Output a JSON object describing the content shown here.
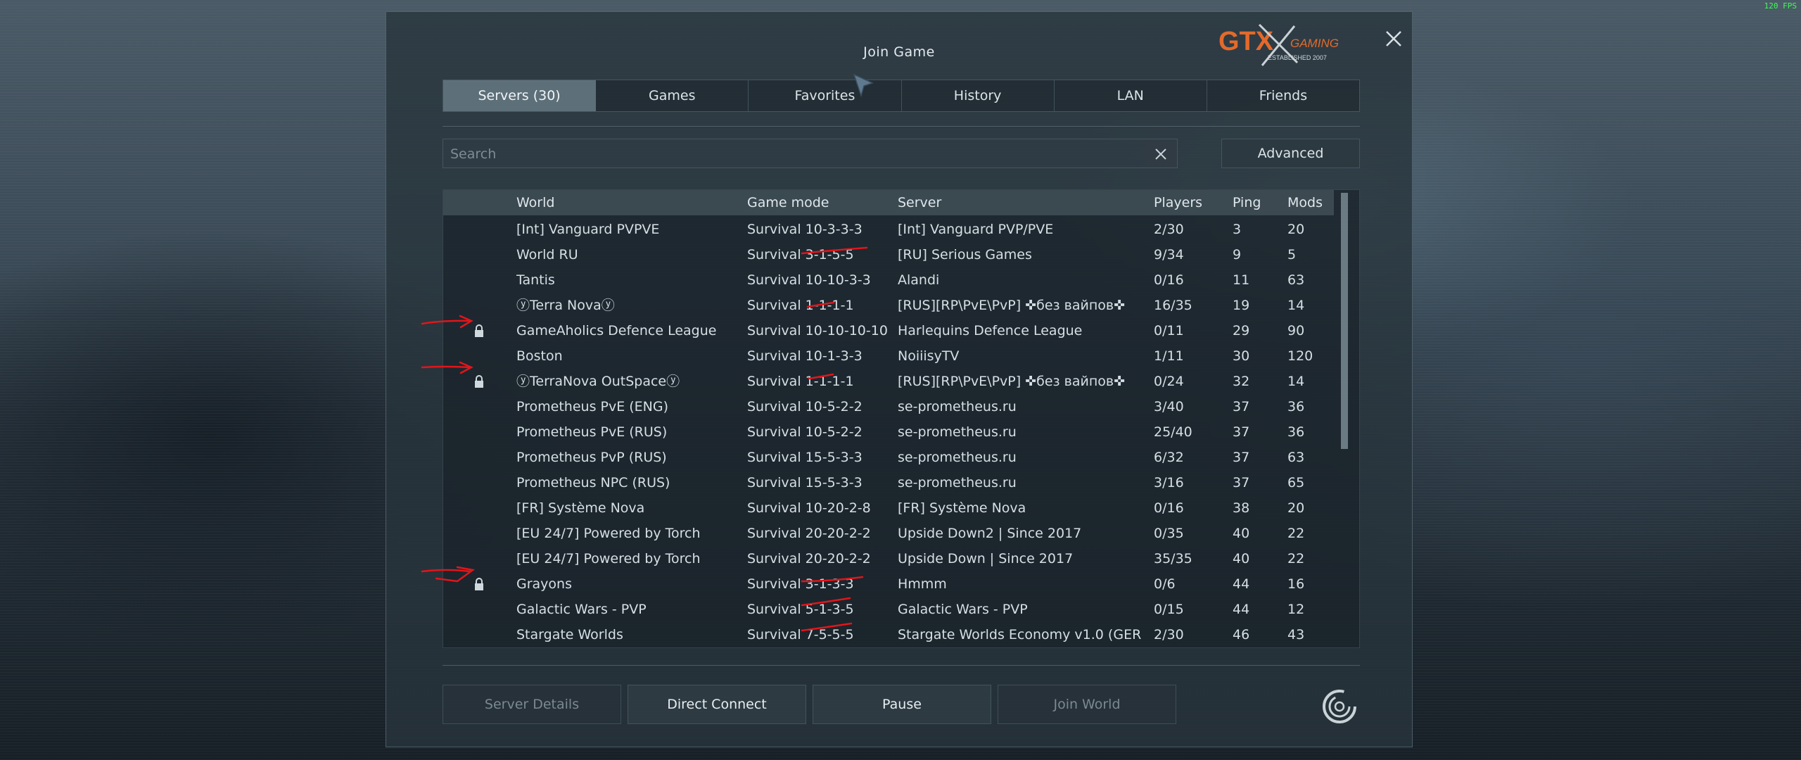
{
  "fps": "120 FPS",
  "dialog": {
    "title": "Join Game",
    "logo": {
      "main": "GTX",
      "sub": "GAMING",
      "tagline": "ESTABLISHED 2007"
    }
  },
  "tabs": [
    {
      "label": "Servers (30)",
      "active": true
    },
    {
      "label": "Games",
      "active": false
    },
    {
      "label": "Favorites",
      "active": false
    },
    {
      "label": "History",
      "active": false
    },
    {
      "label": "LAN",
      "active": false
    },
    {
      "label": "Friends",
      "active": false
    }
  ],
  "search": {
    "placeholder": "Search",
    "value": ""
  },
  "advanced_label": "Advanced",
  "columns": {
    "world": "World",
    "mode": "Game mode",
    "server": "Server",
    "players": "Players",
    "ping": "Ping",
    "mods": "Mods"
  },
  "rows": [
    {
      "world": "[Int] Vanguard PVPVE",
      "mode": "Survival 10-3-3-3",
      "server": "[Int] Vanguard PVP/PVE",
      "players": "2/30",
      "ping": "3",
      "mods": "20",
      "locked": false
    },
    {
      "world": "World RU",
      "mode": "Survival 3-1-5-5",
      "server": "[RU] Serious Games",
      "players": "9/34",
      "ping": "9",
      "mods": "5",
      "locked": false
    },
    {
      "world": "Tantis",
      "mode": "Survival 10-10-3-3",
      "server": "Alandi",
      "players": "0/16",
      "ping": "11",
      "mods": "63",
      "locked": false
    },
    {
      "world": "ⓨTerra Novaⓨ",
      "mode": "Survival 1-1-1-1",
      "server": "[RUS][RP\\PvE\\PvP] ✜без вайпов✜",
      "players": "16/35",
      "ping": "19",
      "mods": "14",
      "locked": false
    },
    {
      "world": "GameAholics Defence League",
      "mode": "Survival 10-10-10-10",
      "server": "Harlequins Defence League",
      "players": "0/11",
      "ping": "29",
      "mods": "90",
      "locked": true
    },
    {
      "world": "Boston",
      "mode": "Survival 10-1-3-3",
      "server": "NoiiisyTV",
      "players": "1/11",
      "ping": "30",
      "mods": "120",
      "locked": false
    },
    {
      "world": "ⓨTerraNova OutSpaceⓨ",
      "mode": "Survival 1-1-1-1",
      "server": "[RUS][RP\\PvE\\PvP] ✜без вайпов✜",
      "players": "0/24",
      "ping": "32",
      "mods": "14",
      "locked": true
    },
    {
      "world": "Prometheus PvE (ENG)",
      "mode": "Survival 10-5-2-2",
      "server": "se-prometheus.ru",
      "players": "3/40",
      "ping": "37",
      "mods": "36",
      "locked": false
    },
    {
      "world": "Prometheus PvE (RUS)",
      "mode": "Survival 10-5-2-2",
      "server": "se-prometheus.ru",
      "players": "25/40",
      "ping": "37",
      "mods": "36",
      "locked": false
    },
    {
      "world": "Prometheus PvP (RUS)",
      "mode": "Survival 15-5-3-3",
      "server": "se-prometheus.ru",
      "players": "6/32",
      "ping": "37",
      "mods": "63",
      "locked": false
    },
    {
      "world": "Prometheus NPC (RUS)",
      "mode": "Survival 15-5-3-3",
      "server": "se-prometheus.ru",
      "players": "3/16",
      "ping": "37",
      "mods": "65",
      "locked": false
    },
    {
      "world": "[FR] Système Nova",
      "mode": "Survival 10-20-2-8",
      "server": "[FR] Système Nova",
      "players": "0/16",
      "ping": "38",
      "mods": "20",
      "locked": false
    },
    {
      "world": "[EU 24/7] Powered by Torch",
      "mode": "Survival 20-20-2-2",
      "server": "Upside Down2 | Since 2017",
      "players": "0/35",
      "ping": "40",
      "mods": "22",
      "locked": false
    },
    {
      "world": "[EU 24/7] Powered by Torch",
      "mode": "Survival 20-20-2-2",
      "server": "Upside Down | Since 2017",
      "players": "35/35",
      "ping": "40",
      "mods": "22",
      "locked": false
    },
    {
      "world": "Grayons",
      "mode": "Survival 3-1-3-3",
      "server": "Hmmm",
      "players": "0/6",
      "ping": "44",
      "mods": "16",
      "locked": true
    },
    {
      "world": "Galactic Wars - PVP",
      "mode": "Survival 5-1-3-5",
      "server": "Galactic Wars - PVP",
      "players": "0/15",
      "ping": "44",
      "mods": "12",
      "locked": false
    },
    {
      "world": "Stargate Worlds",
      "mode": "Survival 7-5-5-5",
      "server": "Stargate Worlds Economy v1.0 (GER",
      "players": "2/30",
      "ping": "46",
      "mods": "43",
      "locked": false
    }
  ],
  "buttons": {
    "server_details": "Server Details",
    "direct_connect": "Direct Connect",
    "pause": "Pause",
    "join_world": "Join World"
  },
  "colors": {
    "annotation_red": "#e0161b",
    "accent_orange": "#e36a2a",
    "active_tab": "#5d6f79"
  }
}
